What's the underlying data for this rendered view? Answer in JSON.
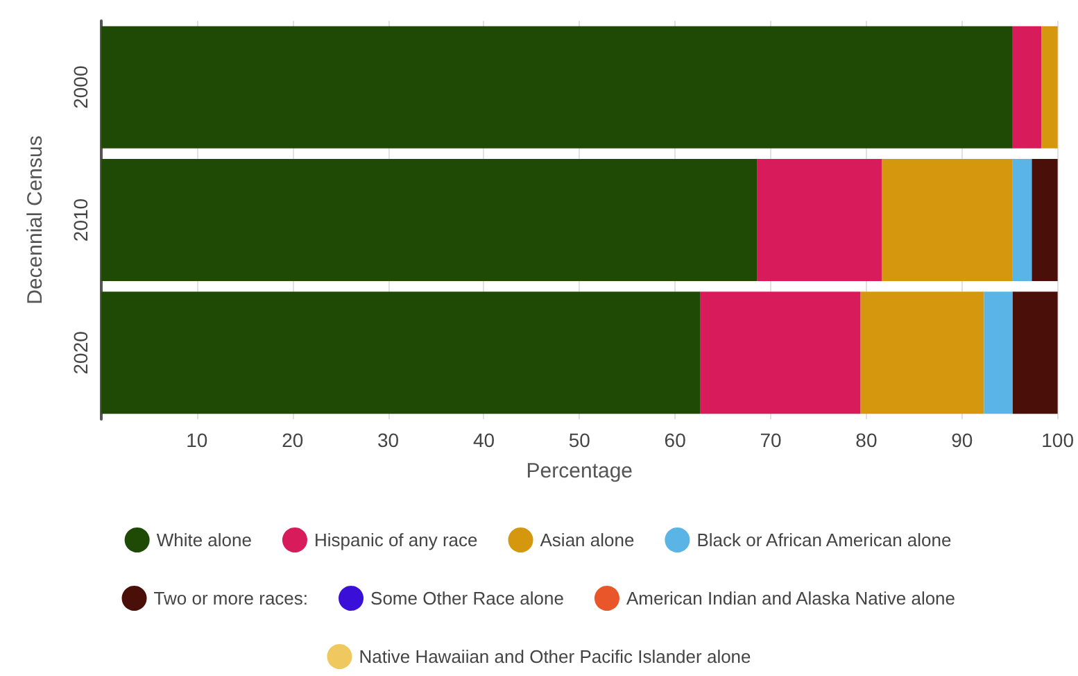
{
  "chart_data": {
    "type": "bar",
    "orientation": "horizontal",
    "stacked": true,
    "xlabel": "Percentage",
    "ylabel": "Decennial Census",
    "categories": [
      "2000",
      "2010",
      "2020"
    ],
    "series": [
      {
        "name": "White alone",
        "color": "#1e4a05",
        "values": [
          95.3,
          68.6,
          62.6
        ]
      },
      {
        "name": "Hispanic of any race",
        "color": "#d81b5a",
        "values": [
          3.0,
          13.0,
          16.8
        ]
      },
      {
        "name": "Asian alone",
        "color": "#d4970e",
        "values": [
          1.7,
          13.7,
          12.9
        ]
      },
      {
        "name": "Black or African American alone",
        "color": "#5ab4e5",
        "values": [
          null,
          2.0,
          3.0
        ]
      },
      {
        "name": "Two or more races:",
        "color": "#4a0f08",
        "values": [
          null,
          2.7,
          4.7
        ]
      },
      {
        "name": "Some Other Race alone",
        "color": "#3a10d8",
        "values": [
          null,
          null,
          null
        ]
      },
      {
        "name": "American Indian and Alaska Native alone",
        "color": "#e8562a",
        "values": [
          null,
          null,
          null
        ]
      },
      {
        "name": "Native Hawaiian and Other Pacific Islander alone",
        "color": "#f0c860",
        "values": [
          null,
          null,
          null
        ]
      }
    ],
    "xlim": [
      0,
      100
    ],
    "xticks": [
      {
        "value": 0,
        "label": null
      },
      10,
      20,
      30,
      40,
      50,
      60,
      70,
      80,
      90,
      100
    ],
    "grid": "x",
    "legend": "bottom"
  }
}
